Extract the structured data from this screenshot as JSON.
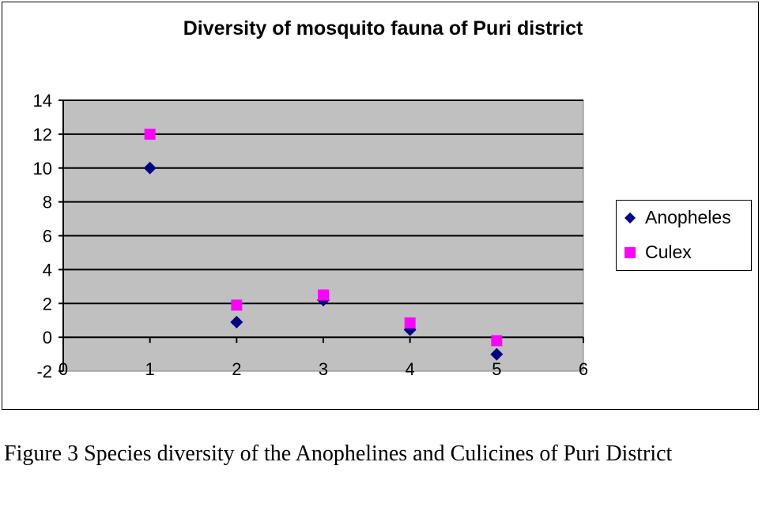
{
  "chart_data": {
    "type": "scatter",
    "title": "Diversity of mosquito fauna of Puri district",
    "xlabel": "",
    "ylabel": "",
    "xlim": [
      0,
      6
    ],
    "ylim": [
      -2,
      14
    ],
    "xticks": [
      0,
      1,
      2,
      3,
      4,
      5,
      6
    ],
    "yticks": [
      -2,
      0,
      2,
      4,
      6,
      8,
      10,
      12,
      14
    ],
    "grid": true,
    "legend_position": "right",
    "series": [
      {
        "name": "Anopheles",
        "marker": "diamond",
        "color": "#000080",
        "x": [
          1,
          2,
          3,
          4,
          5
        ],
        "y": [
          10,
          0.9,
          2.2,
          0.45,
          -1.0
        ]
      },
      {
        "name": "Culex",
        "marker": "square",
        "color": "#FF00FF",
        "x": [
          1,
          2,
          3,
          4,
          5
        ],
        "y": [
          12,
          1.9,
          2.5,
          0.85,
          -0.2
        ]
      }
    ]
  },
  "caption": "Figure 3 Species diversity of the Anophelines and Culicines of Puri District"
}
